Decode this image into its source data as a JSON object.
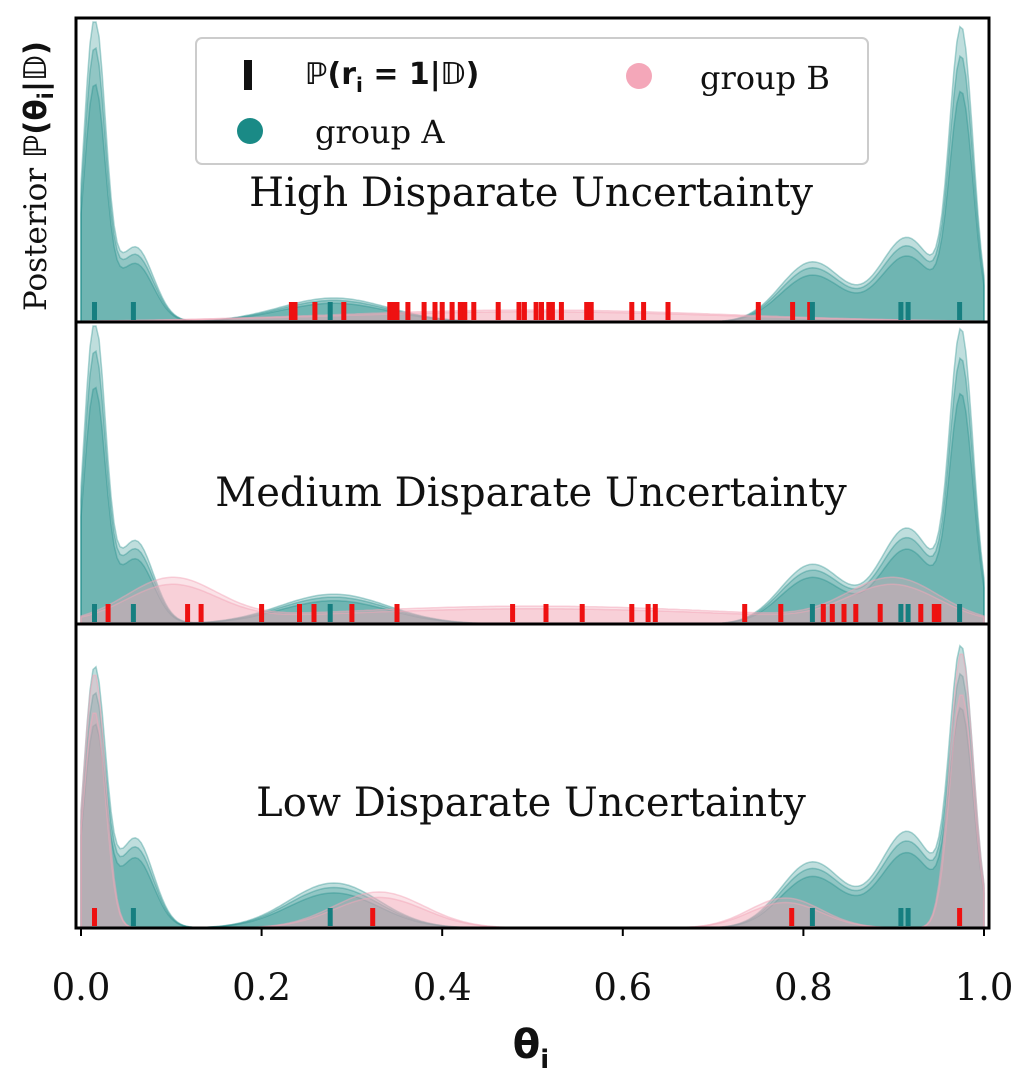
{
  "chart_data": {
    "type": "density",
    "xlabel_base": "θ",
    "xlabel_sub": "i",
    "ylabel_text": "Posterior ",
    "ylabel_math": "ℙ(θ",
    "ylabel_sub": "i",
    "ylabel_tail": "|𝔻)",
    "xlim": [
      0.0,
      1.0
    ],
    "xticks": [
      "0.0",
      "0.2",
      "0.4",
      "0.6",
      "0.8",
      "1.0"
    ],
    "xtick_values": [
      0.0,
      0.2,
      0.4,
      0.6,
      0.8,
      1.0
    ],
    "colors": {
      "group_a": "#1a8a86",
      "group_b": "#f4a7b9",
      "rug_b": "#ee1111",
      "rug_a": "#167f80"
    },
    "legend": {
      "position": "upper center",
      "rug_label_pre": "ℙ(r",
      "rug_label_sub": "i",
      "rug_label_post": " = 1|𝔻)",
      "group_a": "group A",
      "group_b": "group B"
    },
    "panels": [
      {
        "title": "High Disparate Uncertainty",
        "rug_a": [
          0.015,
          0.058,
          0.276,
          0.81,
          0.908,
          0.916,
          0.973
        ],
        "rug_b": [
          0.233,
          0.237,
          0.259,
          0.291,
          0.342,
          0.346,
          0.35,
          0.362,
          0.38,
          0.392,
          0.4,
          0.411,
          0.42,
          0.425,
          0.435,
          0.462,
          0.485,
          0.491,
          0.504,
          0.51,
          0.518,
          0.522,
          0.532,
          0.56,
          0.565,
          0.61,
          0.623,
          0.65,
          0.75,
          0.788,
          0.807
        ],
        "density_a": [
          {
            "mu": 0.015,
            "sd": 0.012,
            "w": 1.0
          },
          {
            "mu": 0.06,
            "sd": 0.02,
            "w": 0.25
          },
          {
            "mu": 0.28,
            "sd": 0.06,
            "w": 0.08
          },
          {
            "mu": 0.81,
            "sd": 0.035,
            "w": 0.2
          },
          {
            "mu": 0.915,
            "sd": 0.03,
            "w": 0.28
          },
          {
            "mu": 0.975,
            "sd": 0.013,
            "w": 0.95
          }
        ],
        "density_b": [
          {
            "mu": 0.5,
            "sd": 0.22,
            "w": 0.04
          }
        ]
      },
      {
        "title": "Medium Disparate Uncertainty",
        "rug_a": [
          0.015,
          0.058,
          0.276,
          0.81,
          0.908,
          0.916,
          0.973
        ],
        "rug_b": [
          0.03,
          0.118,
          0.133,
          0.2,
          0.242,
          0.258,
          0.3,
          0.35,
          0.478,
          0.515,
          0.555,
          0.61,
          0.628,
          0.636,
          0.735,
          0.775,
          0.822,
          0.832,
          0.845,
          0.858,
          0.885,
          0.93,
          0.945,
          0.95
        ],
        "density_a": [
          {
            "mu": 0.015,
            "sd": 0.012,
            "w": 1.0
          },
          {
            "mu": 0.06,
            "sd": 0.02,
            "w": 0.28
          },
          {
            "mu": 0.28,
            "sd": 0.06,
            "w": 0.1
          },
          {
            "mu": 0.81,
            "sd": 0.035,
            "w": 0.2
          },
          {
            "mu": 0.915,
            "sd": 0.03,
            "w": 0.32
          },
          {
            "mu": 0.975,
            "sd": 0.013,
            "w": 0.95
          }
        ],
        "density_b": [
          {
            "mu": 0.1,
            "sd": 0.05,
            "w": 0.14
          },
          {
            "mu": 0.5,
            "sd": 0.25,
            "w": 0.06
          },
          {
            "mu": 0.9,
            "sd": 0.05,
            "w": 0.14
          }
        ]
      },
      {
        "title": "Low Disparate Uncertainty",
        "rug_a": [
          0.058,
          0.276,
          0.81,
          0.908,
          0.916
        ],
        "rug_b": [
          0.015,
          0.323,
          0.787,
          0.973
        ],
        "density_a": [
          {
            "mu": 0.015,
            "sd": 0.012,
            "w": 0.85
          },
          {
            "mu": 0.06,
            "sd": 0.02,
            "w": 0.3
          },
          {
            "mu": 0.28,
            "sd": 0.05,
            "w": 0.15
          },
          {
            "mu": 0.81,
            "sd": 0.035,
            "w": 0.22
          },
          {
            "mu": 0.915,
            "sd": 0.03,
            "w": 0.32
          },
          {
            "mu": 0.975,
            "sd": 0.013,
            "w": 0.9
          }
        ],
        "density_b": [
          {
            "mu": 0.015,
            "sd": 0.012,
            "w": 0.85
          },
          {
            "mu": 0.33,
            "sd": 0.05,
            "w": 0.12
          },
          {
            "mu": 0.78,
            "sd": 0.04,
            "w": 0.1
          },
          {
            "mu": 0.975,
            "sd": 0.013,
            "w": 0.92
          }
        ]
      }
    ]
  }
}
